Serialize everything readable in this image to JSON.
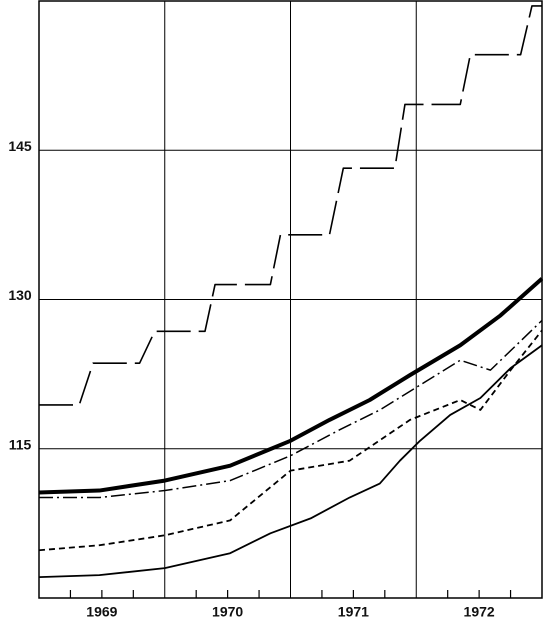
{
  "chart_data": {
    "type": "line",
    "xlim": [
      1969,
      1973
    ],
    "ylim": [
      100,
      160
    ],
    "yticks": [
      115,
      130,
      145
    ],
    "xticks": [
      {
        "value": 1969.5,
        "label": "1969"
      },
      {
        "value": 1970.5,
        "label": "1970"
      },
      {
        "value": 1971.5,
        "label": "1971"
      },
      {
        "value": 1972.5,
        "label": "1972"
      }
    ],
    "xgrid": [
      1970,
      1971,
      1972
    ],
    "xminor": [
      1969.25,
      1969.5,
      1969.75,
      1970.25,
      1970.5,
      1970.75,
      1971.25,
      1971.5,
      1971.75,
      1972.25,
      1972.5,
      1972.75
    ],
    "grid": true,
    "series": [
      {
        "color": "#000",
        "width": 1.6,
        "dash": "34 8",
        "x": [
          1969.0,
          1969.32,
          1969.43,
          1969.8,
          1969.92,
          1970.32,
          1970.4,
          1970.84,
          1970.92,
          1971.31,
          1971.42,
          1971.83,
          1971.91,
          1972.35,
          1972.43,
          1972.83,
          1972.92,
          1973.0
        ],
        "values": [
          119.4,
          119.4,
          123.6,
          123.6,
          126.8,
          126.8,
          131.5,
          131.5,
          136.5,
          136.5,
          143.2,
          143.2,
          149.6,
          149.6,
          154.6,
          154.6,
          159.5,
          159.5
        ]
      },
      {
        "color": "#000",
        "width": 4,
        "dash": "",
        "x": [
          1969.0,
          1969.48,
          1970.0,
          1970.52,
          1971.0,
          1971.31,
          1971.63,
          1971.95,
          1972.35,
          1972.67,
          1973.0
        ],
        "values": [
          110.6,
          110.8,
          111.8,
          113.3,
          115.8,
          117.9,
          119.9,
          122.4,
          125.4,
          128.4,
          132.1
        ]
      },
      {
        "color": "#000",
        "width": 1.5,
        "dash": "14 4 2 4",
        "x": [
          1969.0,
          1969.48,
          1970.0,
          1970.52,
          1971.0,
          1971.39,
          1971.71,
          1972.03,
          1972.35,
          1972.59,
          1973.0
        ],
        "values": [
          110.1,
          110.1,
          110.8,
          111.8,
          114.3,
          116.9,
          118.9,
          121.4,
          123.9,
          122.9,
          127.9
        ]
      },
      {
        "color": "#000",
        "width": 1.8,
        "dash": "6 4",
        "x": [
          1969.0,
          1969.48,
          1970.0,
          1970.52,
          1971.0,
          1971.47,
          1971.95,
          1972.35,
          1972.51,
          1972.75,
          1973.0
        ],
        "values": [
          104.8,
          105.3,
          106.3,
          107.8,
          112.8,
          113.8,
          117.9,
          119.9,
          118.9,
          122.9,
          126.9
        ]
      },
      {
        "color": "#000",
        "width": 1.8,
        "dash": "",
        "x": [
          1969.0,
          1969.48,
          1970.0,
          1970.52,
          1970.84,
          1971.16,
          1971.47,
          1971.71,
          1971.87,
          1972.03,
          1972.27,
          1972.51,
          1972.75,
          1973.0
        ],
        "values": [
          102.1,
          102.3,
          103.0,
          104.5,
          106.5,
          108.0,
          110.1,
          111.5,
          113.8,
          115.8,
          118.4,
          120.1,
          123.1,
          125.4
        ]
      }
    ]
  }
}
